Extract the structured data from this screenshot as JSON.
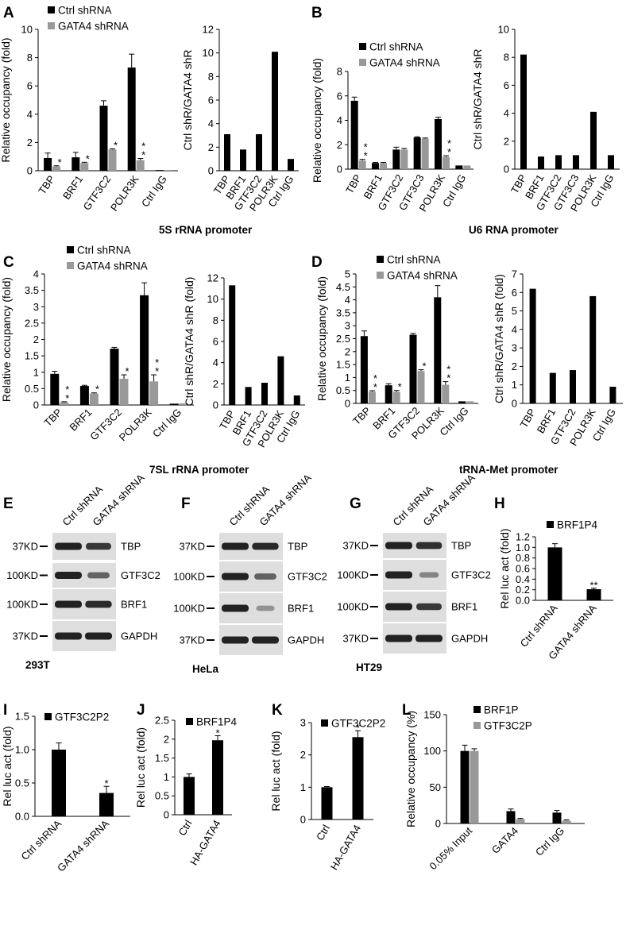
{
  "panel_letters": [
    "A",
    "B",
    "C",
    "D",
    "E",
    "F",
    "G",
    "H",
    "I",
    "J",
    "K",
    "L"
  ],
  "colors": {
    "ctrl": "#000000",
    "gata4": "#999999",
    "blot_bg": "#dedede",
    "band": "#222222"
  },
  "captions": {
    "ab": "5S rRNA promoter",
    "ab2": "U6 RNA promoter",
    "cd": "7SL rRNA promoter",
    "cd2": "tRNA-Met promoter"
  },
  "blots": [
    {
      "letter": "E",
      "cell_line": "293T",
      "lanes": [
        "Ctrl shRNA",
        "GATA4 shRNA"
      ],
      "rows": [
        {
          "marker": "37KD",
          "protein": "TBP",
          "levels": [
            1.0,
            0.85
          ]
        },
        {
          "marker": "100KD",
          "protein": "GTF3C2",
          "levels": [
            1.0,
            0.55
          ]
        },
        {
          "marker": "100KD",
          "protein": "BRF1",
          "levels": [
            1.0,
            0.95
          ]
        },
        {
          "marker": "37KD",
          "protein": "GAPDH",
          "levels": [
            1.0,
            1.0
          ]
        }
      ]
    },
    {
      "letter": "F",
      "cell_line": "HeLa",
      "lanes": [
        "Ctrl shRNA",
        "GATA4 shRNA"
      ],
      "rows": [
        {
          "marker": "37KD",
          "protein": "TBP",
          "levels": [
            1.0,
            0.95
          ]
        },
        {
          "marker": "100KD",
          "protein": "GTF3C2",
          "levels": [
            1.0,
            0.55
          ]
        },
        {
          "marker": "100KD",
          "protein": "BRF1",
          "levels": [
            1.0,
            0.2
          ]
        },
        {
          "marker": "37KD",
          "protein": "GAPDH",
          "levels": [
            1.0,
            1.0
          ]
        }
      ]
    },
    {
      "letter": "G",
      "cell_line": "HT29",
      "lanes": [
        "Ctrl shRNA",
        "GATA4 shRNA"
      ],
      "rows": [
        {
          "marker": "37KD",
          "protein": "TBP",
          "levels": [
            1.0,
            0.9
          ]
        },
        {
          "marker": "100KD",
          "protein": "GTF3C2",
          "levels": [
            1.0,
            0.3
          ]
        },
        {
          "marker": "100KD",
          "protein": "BRF1",
          "levels": [
            1.0,
            0.85
          ]
        },
        {
          "marker": "37KD",
          "protein": "GAPDH",
          "levels": [
            1.0,
            1.0
          ]
        }
      ]
    }
  ],
  "chart_data": [
    {
      "id": "A-left",
      "type": "bar",
      "ylabel": "Relative occupancy (fold)",
      "categories": [
        "TBP",
        "BRF1",
        "GTF3C2",
        "POLR3K",
        "Ctrl IgG"
      ],
      "ylim": [
        0,
        10
      ],
      "yticks": [
        "0",
        "2",
        "4",
        "6",
        "8",
        "10"
      ],
      "series": [
        {
          "name": "Ctrl shRNA",
          "values": [
            0.9,
            0.95,
            4.6,
            7.3,
            0.05
          ],
          "err": [
            0.35,
            0.35,
            0.35,
            0.95,
            0
          ]
        },
        {
          "name": "GATA4 shRNA",
          "values": [
            0.3,
            0.55,
            1.5,
            0.75,
            0.05
          ],
          "err": [
            0.05,
            0.05,
            0.05,
            0.12,
            0
          ]
        }
      ],
      "sig": [
        "*",
        "*",
        "*",
        "**",
        ""
      ]
    },
    {
      "id": "A-right",
      "type": "bar",
      "ylabel": "Ctrl shR/GATA4 shR",
      "categories": [
        "TBP",
        "BRF1",
        "GTF3C2",
        "POLR3K",
        "Ctrl IgG"
      ],
      "ylim": [
        0,
        12
      ],
      "yticks": [
        "0",
        "2",
        "4",
        "6",
        "8",
        "10",
        "12"
      ],
      "series": [
        {
          "values": [
            3.1,
            1.8,
            3.1,
            10.1,
            1.0
          ]
        }
      ]
    },
    {
      "id": "B-left",
      "type": "bar",
      "ylabel": "Relative occupancy (fold)",
      "categories": [
        "TBP",
        "BRF1",
        "GTF3C2",
        "GTF3C3",
        "POLR3K",
        "Ctrl IgG"
      ],
      "ylim": [
        0,
        8
      ],
      "yticks": [
        "0",
        "2",
        "4",
        "6",
        "8"
      ],
      "series": [
        {
          "name": "Ctrl shRNA",
          "values": [
            5.6,
            0.5,
            1.6,
            2.6,
            4.1,
            0.3
          ],
          "err": [
            0.3,
            0.05,
            0.2,
            0.05,
            0.15,
            0
          ]
        },
        {
          "name": "GATA4 shRNA",
          "values": [
            0.7,
            0.5,
            1.6,
            2.5,
            1.0,
            0.3
          ],
          "err": [
            0.1,
            0.05,
            0.1,
            0.05,
            0.1,
            0
          ]
        }
      ],
      "sig": [
        "**",
        "",
        "",
        "",
        "**",
        ""
      ]
    },
    {
      "id": "B-right",
      "type": "bar",
      "ylabel": "Ctrl shR/GATA4 shR",
      "categories": [
        "TBP",
        "BRF1",
        "GTF3C2",
        "GTF3C3",
        "POLR3K",
        "Ctrl IgG"
      ],
      "ylim": [
        0,
        10
      ],
      "yticks": [
        "0",
        "2",
        "4",
        "6",
        "8",
        "10"
      ],
      "series": [
        {
          "values": [
            8.2,
            0.9,
            1.0,
            1.0,
            4.1,
            1.0
          ]
        }
      ]
    },
    {
      "id": "C-left",
      "type": "bar",
      "ylabel": "Relative occupancy (fold)",
      "categories": [
        "TBP",
        "BRF1",
        "GTF3C2",
        "POLR3K",
        "Ctrl IgG"
      ],
      "ylim": [
        0,
        4
      ],
      "yticks": [
        "0",
        "0.5",
        "1",
        "1.5",
        "2",
        "2.5",
        "3",
        "3.5",
        "4"
      ],
      "series": [
        {
          "name": "Ctrl shRNA",
          "values": [
            0.95,
            0.58,
            1.72,
            3.35,
            0.04
          ],
          "err": [
            0.08,
            0.02,
            0.04,
            0.38,
            0
          ]
        },
        {
          "name": "GATA4 shRNA",
          "values": [
            0.08,
            0.35,
            0.8,
            0.72,
            0.05
          ],
          "err": [
            0.02,
            0.02,
            0.12,
            0.2,
            0
          ]
        }
      ],
      "sig": [
        "**",
        "*",
        "*",
        "**",
        ""
      ]
    },
    {
      "id": "C-right",
      "type": "bar",
      "ylabel": "Ctrl shR/GATA4 shR (fold)",
      "categories": [
        "TBP",
        "BRF1",
        "GTF3C2",
        "POLR3K",
        "Ctrl IgG"
      ],
      "ylim": [
        0,
        12
      ],
      "yticks": [
        "0",
        "2",
        "4",
        "6",
        "8",
        "10",
        "12"
      ],
      "series": [
        {
          "values": [
            11.3,
            1.7,
            2.1,
            4.6,
            0.9
          ]
        }
      ]
    },
    {
      "id": "D-left",
      "type": "bar",
      "ylabel": "Relative occupancy (fold)",
      "categories": [
        "TBP",
        "BRF1",
        "GTF3C2",
        "POLR3K",
        "Ctrl IgG"
      ],
      "ylim": [
        0,
        5
      ],
      "yticks": [
        "0",
        "0.5",
        "1",
        "1.5",
        "2",
        "2.5",
        "3",
        "3.5",
        "4",
        "4.5",
        "5"
      ],
      "series": [
        {
          "name": "Ctrl shRNA",
          "values": [
            2.6,
            0.7,
            2.65,
            4.1,
            0.08
          ],
          "err": [
            0.2,
            0.06,
            0.05,
            0.45,
            0
          ]
        },
        {
          "name": "GATA4 shRNA",
          "values": [
            0.45,
            0.45,
            1.25,
            0.72,
            0.08
          ],
          "err": [
            0.04,
            0.05,
            0.05,
            0.12,
            0
          ]
        }
      ],
      "sig": [
        "**",
        "*",
        "*",
        "**",
        ""
      ]
    },
    {
      "id": "D-right",
      "type": "bar",
      "ylabel": "Ctrl shR/GATA4 shR (fold)",
      "categories": [
        "TBP",
        "BRF1",
        "GTF3C2",
        "POLR3K",
        "Ctrl IgG"
      ],
      "ylim": [
        0,
        7
      ],
      "yticks": [
        "0",
        "1",
        "2",
        "3",
        "4",
        "5",
        "6",
        "7"
      ],
      "series": [
        {
          "values": [
            6.2,
            1.65,
            1.8,
            5.8,
            0.9
          ]
        }
      ]
    },
    {
      "id": "H",
      "type": "bar",
      "ylabel": "Rel luc act (fold)",
      "categories": [
        "Ctrl shRNA",
        "GATA4 shRNA"
      ],
      "ylim": [
        0,
        1.2
      ],
      "yticks": [
        "0.0",
        "0.2",
        "0.4",
        "0.6",
        "0.8",
        "1.0",
        "1.2"
      ],
      "series": [
        {
          "name": "BRF1P4",
          "values": [
            1.0,
            0.21
          ],
          "err": [
            0.07,
            0.02
          ]
        }
      ],
      "sig": [
        "",
        "**"
      ]
    },
    {
      "id": "I",
      "type": "bar",
      "ylabel": "Rel luc act (fold)",
      "categories": [
        "Ctrl shRNA",
        "GATA4 shRNA"
      ],
      "ylim": [
        0,
        1.5
      ],
      "yticks": [
        "0.0",
        "0.5",
        "1.0",
        "1.5"
      ],
      "series": [
        {
          "name": "GTF3C2P2",
          "values": [
            1.0,
            0.35
          ],
          "err": [
            0.1,
            0.1
          ]
        }
      ],
      "sig": [
        "",
        "*"
      ]
    },
    {
      "id": "J",
      "type": "bar",
      "ylabel": "Rel luc act (fold)",
      "categories": [
        "Ctrl",
        "HA-GATA4"
      ],
      "ylim": [
        0,
        2.5
      ],
      "yticks": [
        "0",
        "0.5",
        "1",
        "1.5",
        "2",
        "2.5"
      ],
      "series": [
        {
          "name": "BRF1P4",
          "values": [
            1.0,
            1.97
          ],
          "err": [
            0.08,
            0.12
          ]
        }
      ],
      "sig": [
        "",
        "*"
      ]
    },
    {
      "id": "K",
      "type": "bar",
      "ylabel": "Rel luc act (fold)",
      "categories": [
        "Ctrl",
        "HA-GATA4"
      ],
      "ylim": [
        0,
        3
      ],
      "yticks": [
        "0",
        "1",
        "2",
        "3"
      ],
      "series": [
        {
          "name": "GTF3C2P2",
          "values": [
            1.0,
            2.55
          ],
          "err": [
            0.02,
            0.2
          ]
        }
      ],
      "sig": [
        "",
        "*"
      ]
    },
    {
      "id": "L",
      "type": "bar",
      "ylabel": "Relative occupancy (%)",
      "categories": [
        "0.05% Input",
        "GATA4",
        "Ctrl IgG"
      ],
      "ylim": [
        0,
        150
      ],
      "yticks": [
        "0",
        "50",
        "100",
        "150"
      ],
      "series": [
        {
          "name": "BRF1P",
          "values": [
            100,
            17,
            15
          ],
          "err": [
            8,
            3,
            3
          ]
        },
        {
          "name": "GTF3C2P",
          "values": [
            100,
            6,
            4
          ],
          "err": [
            3,
            1,
            1
          ]
        }
      ]
    }
  ]
}
